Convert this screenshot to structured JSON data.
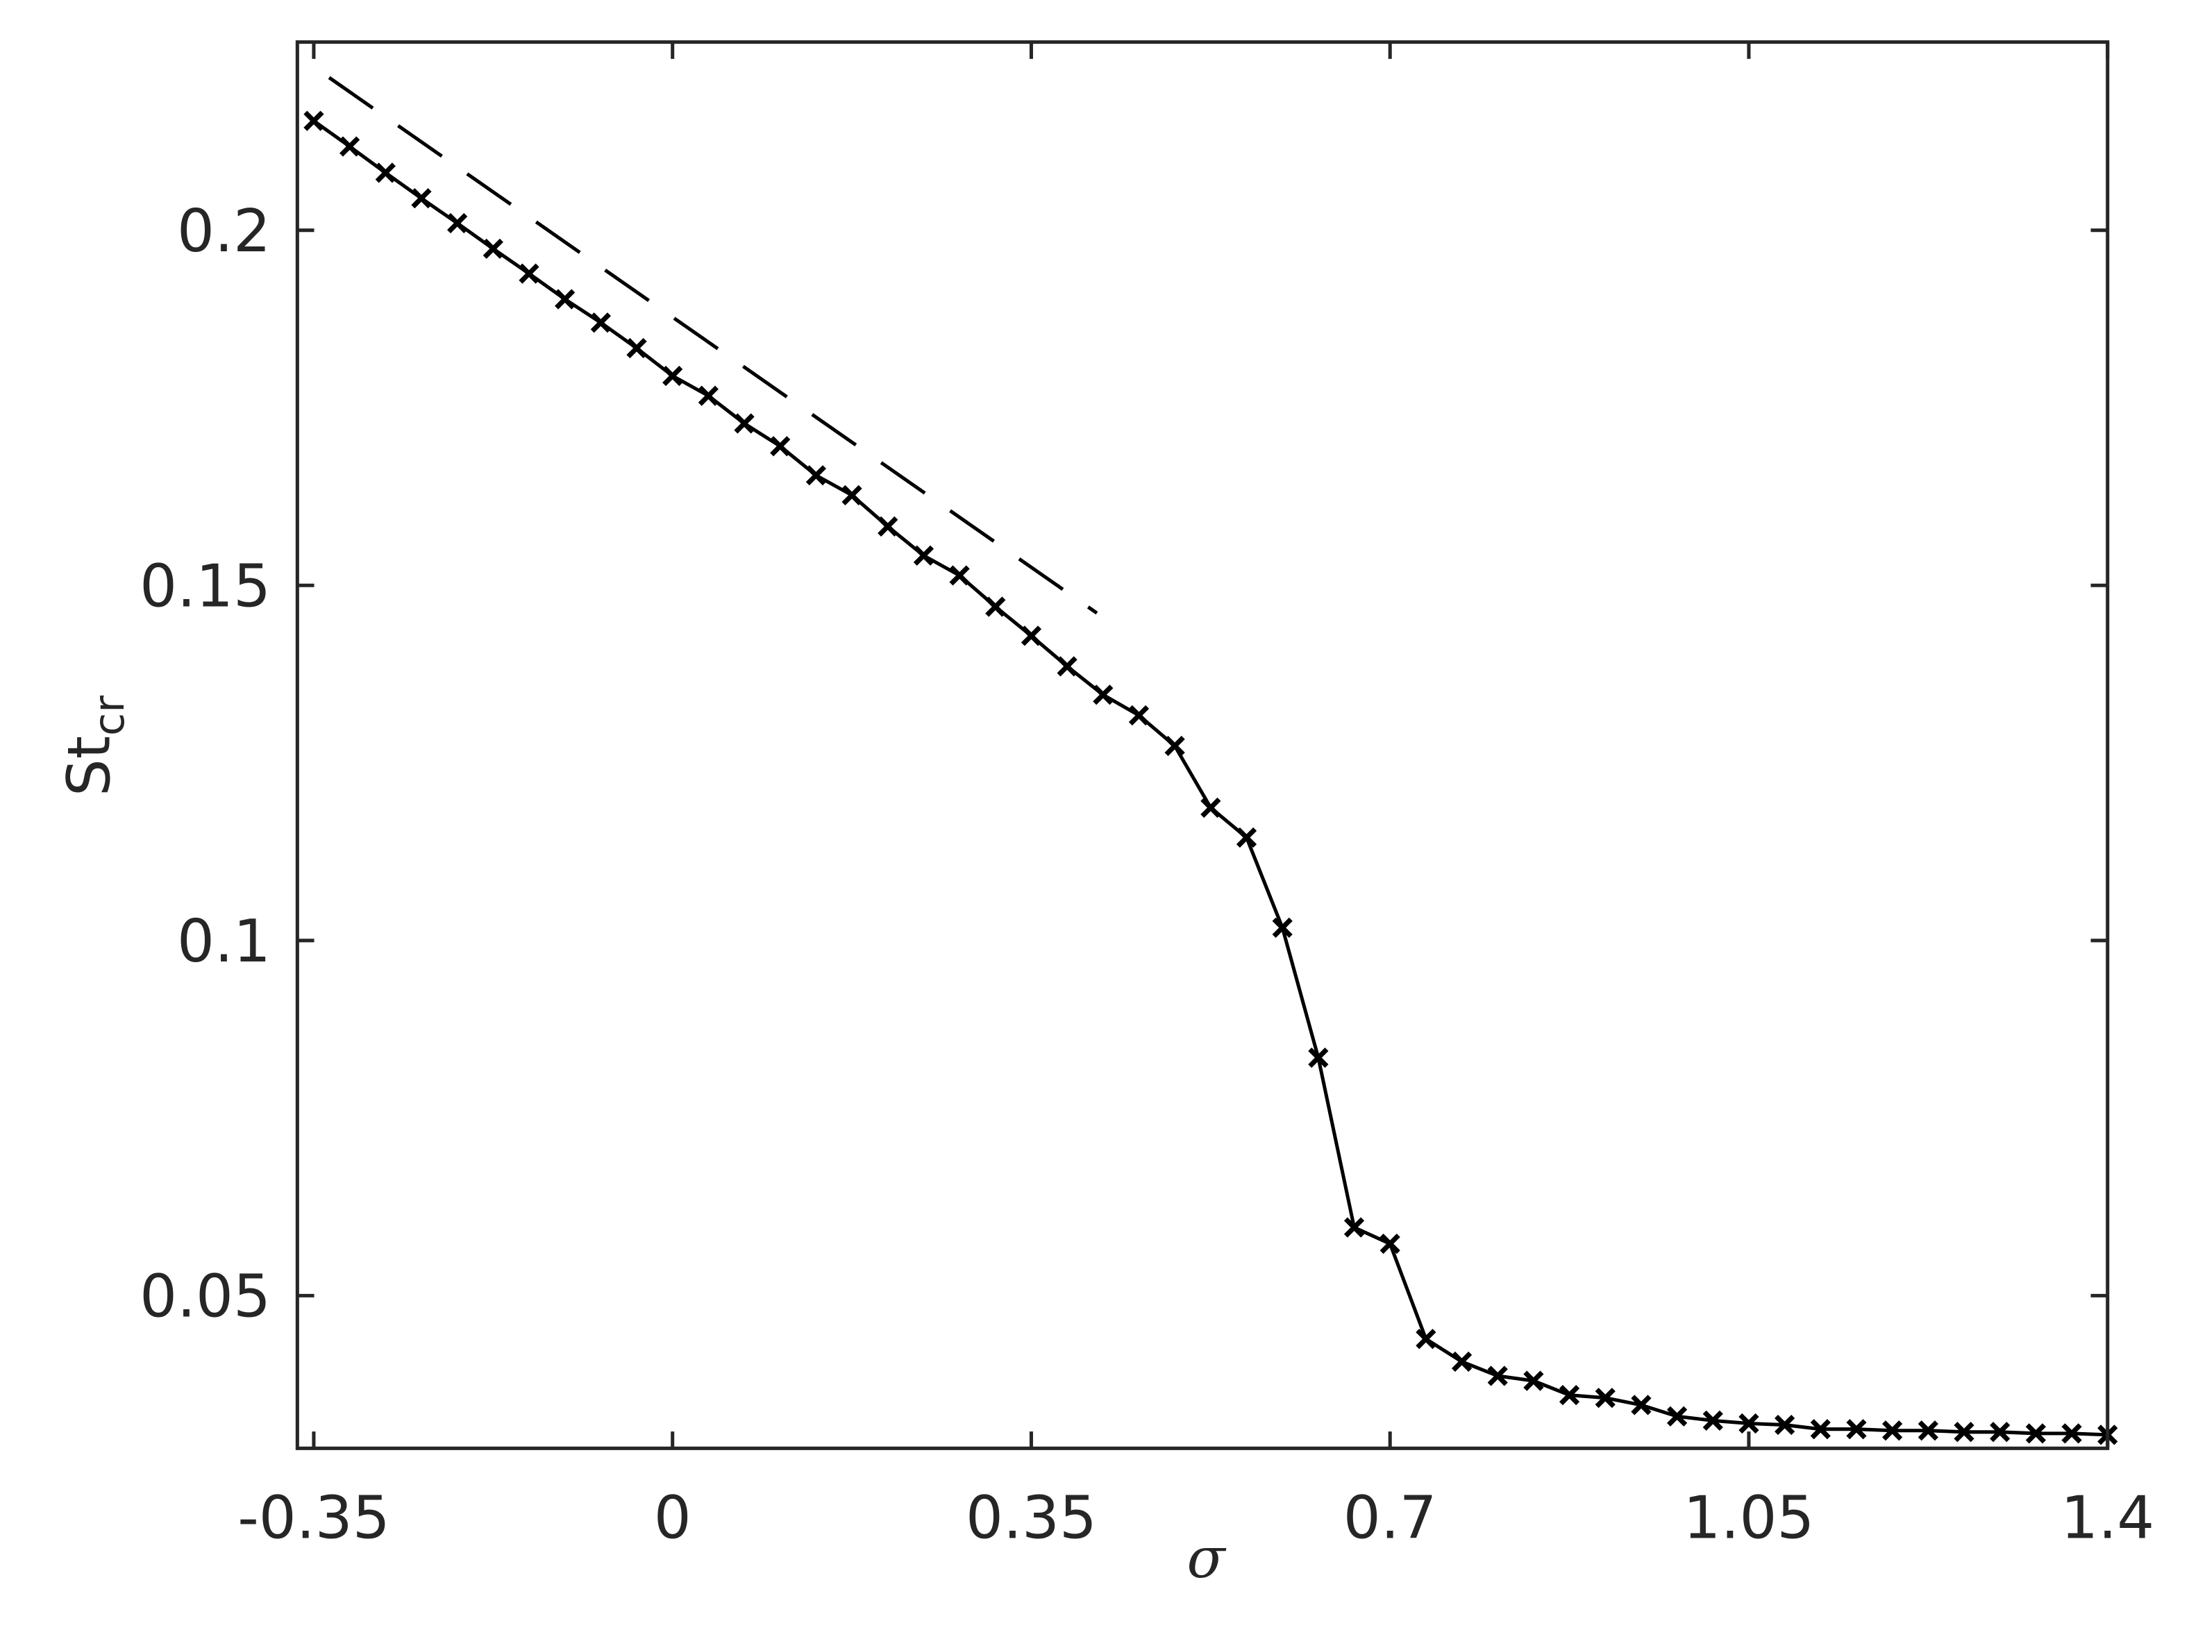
{
  "chart_data": {
    "type": "line",
    "xlabel": "σ",
    "ylabel": "St",
    "ylabel_subscript": "cr",
    "xlim": [
      -0.366,
      1.4
    ],
    "ylim": [
      0.0285,
      0.2265
    ],
    "xticks": [
      -0.35,
      0,
      0.35,
      0.7,
      1.05,
      1.4
    ],
    "yticks": [
      0.05,
      0.1,
      0.15,
      0.2
    ],
    "grid": false,
    "series": [
      {
        "color": "#000000",
        "line_style": "solid",
        "marker": "x",
        "x": [
          -0.35,
          -0.315,
          -0.28,
          -0.245,
          -0.21,
          -0.175,
          -0.14,
          -0.105,
          -0.07,
          -0.035,
          0,
          0.035,
          0.07,
          0.105,
          0.14,
          0.175,
          0.21,
          0.245,
          0.28,
          0.315,
          0.35,
          0.385,
          0.42,
          0.455,
          0.49,
          0.525,
          0.56,
          0.595,
          0.63,
          0.665,
          0.7,
          0.735,
          0.77,
          0.805,
          0.84,
          0.875,
          0.91,
          0.945,
          0.98,
          1.015,
          1.05,
          1.085,
          1.12,
          1.155,
          1.19,
          1.225,
          1.26,
          1.295,
          1.33,
          1.365,
          1.4
        ],
        "values": [
          0.2154,
          0.2118,
          0.2081,
          0.2045,
          0.201,
          0.1974,
          0.1939,
          0.1903,
          0.187,
          0.1834,
          0.1795,
          0.1767,
          0.1728,
          0.1696,
          0.1655,
          0.1627,
          0.1583,
          0.1542,
          0.1514,
          0.147,
          0.1429,
          0.1386,
          0.1346,
          0.1317,
          0.1274,
          0.1187,
          0.1145,
          0.1018,
          0.0835,
          0.0596,
          0.0573,
          0.0439,
          0.0407,
          0.0387,
          0.038,
          0.036,
          0.0356,
          0.0346,
          0.033,
          0.0324,
          0.032,
          0.0318,
          0.0312,
          0.0312,
          0.031,
          0.031,
          0.0308,
          0.0308,
          0.0306,
          0.0306,
          0.0304
        ]
      },
      {
        "color": "#000000",
        "line_style": "dashed",
        "marker": "none",
        "x": [
          -0.335,
          0.414
        ],
        "values": [
          0.2215,
          0.1461
        ]
      }
    ]
  }
}
